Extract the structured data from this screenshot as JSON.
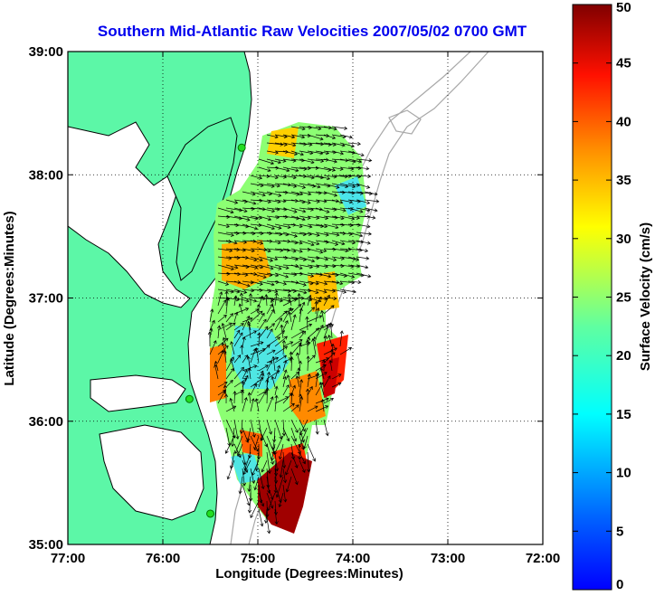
{
  "title": "Southern Mid-Atlantic Raw Velocities 2007/05/02 0700 GMT",
  "x_axis": {
    "label": "Longitude (Degrees:Minutes)",
    "ticks": [
      "77:00",
      "76:00",
      "75:00",
      "74:00",
      "73:00",
      "72:00"
    ],
    "tick_values": [
      -77,
      -76,
      -75,
      -74,
      -73,
      -72
    ]
  },
  "y_axis": {
    "label": "Latitude (Degrees:Minutes)",
    "ticks": [
      "39:00",
      "38:00",
      "37:00",
      "36:00",
      "35:00"
    ],
    "tick_values": [
      39,
      38,
      37,
      36,
      35
    ]
  },
  "colorbar": {
    "label": "Surface Velocity (cm/s)",
    "ticks": [
      "50",
      "45",
      "40",
      "35",
      "30",
      "25",
      "20",
      "15",
      "10",
      "5",
      "0"
    ],
    "range": [
      0,
      50
    ],
    "colormap": "jet"
  },
  "colors": {
    "land": "#5cf7a7",
    "coastline": "#000000",
    "bathymetry": "#a8a8a8",
    "title": "#0000ee",
    "site_marker": "#22dd22"
  },
  "grid": "dotted",
  "chart_data": {
    "type": "heatmap",
    "title": "Southern Mid-Atlantic Raw Velocities 2007/05/02 0700 GMT",
    "xlabel": "Longitude (Degrees:Minutes)",
    "ylabel": "Latitude (Degrees:Minutes)",
    "xlim": [
      -77,
      -72
    ],
    "ylim": [
      35,
      39
    ],
    "color_range": [
      0,
      50
    ],
    "units": "cm/s",
    "radar_sites": [
      {
        "lon": -75.17,
        "lat": 38.22
      },
      {
        "lon": -75.72,
        "lat": 36.18
      },
      {
        "lon": -75.5,
        "lat": 35.25
      }
    ]
  }
}
